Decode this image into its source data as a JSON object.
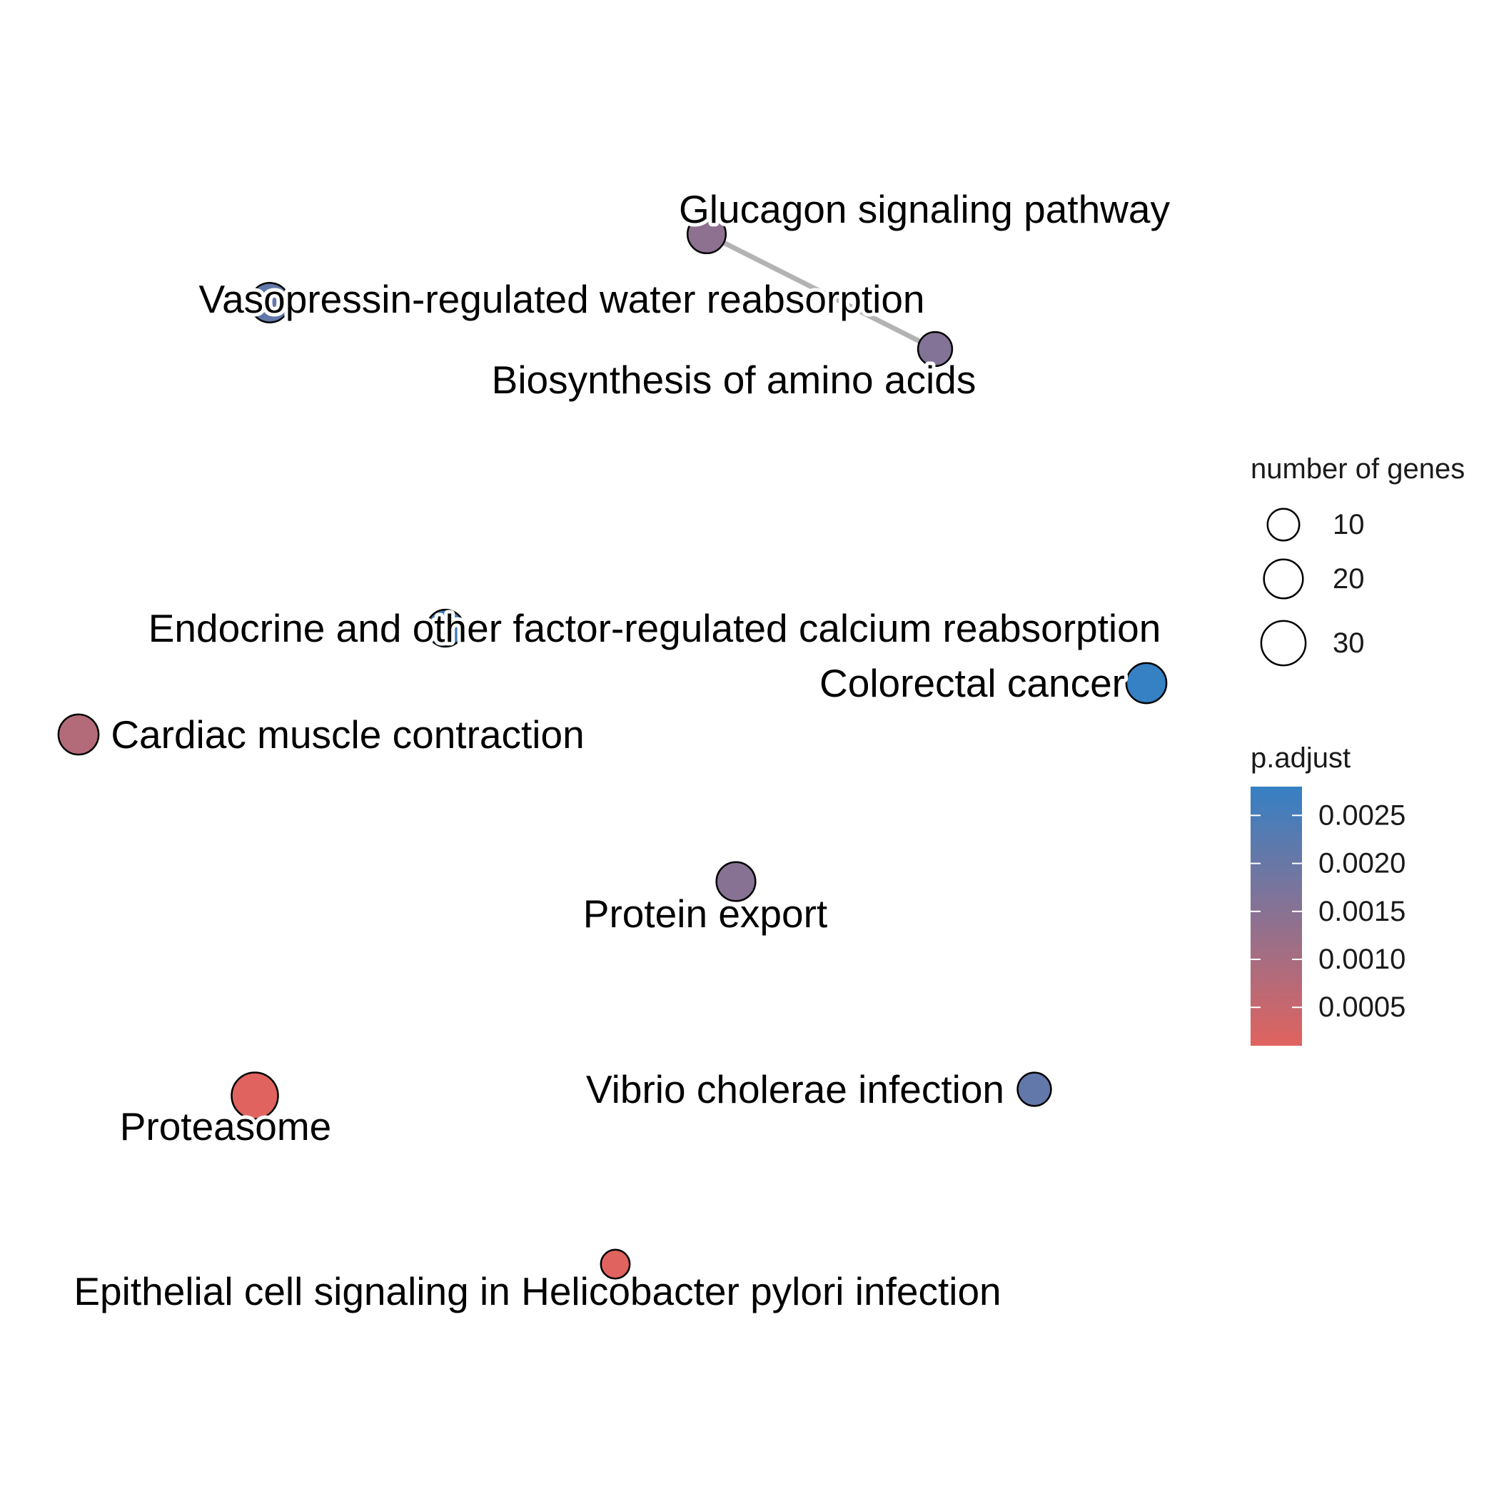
{
  "chart_data": {
    "type": "network",
    "nodes": [
      {
        "id": "glucagon",
        "label": "Glucagon signaling pathway",
        "genes": 19,
        "p_adjust": 0.0014
      },
      {
        "id": "vasopressin",
        "label": "Vasopressin-regulated water reabsorption",
        "genes": 21,
        "p_adjust": 0.0021
      },
      {
        "id": "biosynthesis",
        "label": "Biosynthesis of amino acids",
        "genes": 13,
        "p_adjust": 0.0016
      },
      {
        "id": "endocrine",
        "label": "Endocrine and other factor-regulated calcium reabsorption",
        "genes": 17,
        "p_adjust": 0.0026
      },
      {
        "id": "colorectal",
        "label": "Colorectal cancer",
        "genes": 22,
        "p_adjust": 0.0028
      },
      {
        "id": "cardiac",
        "label": "Cardiac muscle contraction",
        "genes": 22,
        "p_adjust": 0.0008
      },
      {
        "id": "protein_export",
        "label": "Protein export",
        "genes": 20,
        "p_adjust": 0.0015
      },
      {
        "id": "vibrio",
        "label": "Vibrio cholerae infection",
        "genes": 12,
        "p_adjust": 0.0021
      },
      {
        "id": "proteasome",
        "label": "Proteasome",
        "genes": 34,
        "p_adjust": 0.0001
      },
      {
        "id": "epithelial",
        "label": "Epithelial cell signaling in Helicobacter pylori infection",
        "genes": 7,
        "p_adjust": 0.0001
      }
    ],
    "edges": [
      {
        "source": "glucagon",
        "target": "biosynthesis"
      }
    ],
    "legend": {
      "size_title": "number of genes",
      "size_breaks": [
        {
          "label": "10",
          "value": 10
        },
        {
          "label": "20",
          "value": 20
        },
        {
          "label": "30",
          "value": 30
        }
      ],
      "color_title": "p.adjust",
      "color_breaks": [
        {
          "label": "0.0025",
          "value": 0.0025
        },
        {
          "label": "0.0020",
          "value": 0.002
        },
        {
          "label": "0.0015",
          "value": 0.0015
        },
        {
          "label": "0.0010",
          "value": 0.001
        },
        {
          "label": "0.0005",
          "value": 0.0005
        }
      ],
      "color_range": [
        0.0001,
        0.0028
      ],
      "color_low": "#e0635f",
      "color_high": "#3680c4",
      "placement": "right"
    },
    "edge_color": "#b3b3b3",
    "node_stroke": "#000000"
  }
}
